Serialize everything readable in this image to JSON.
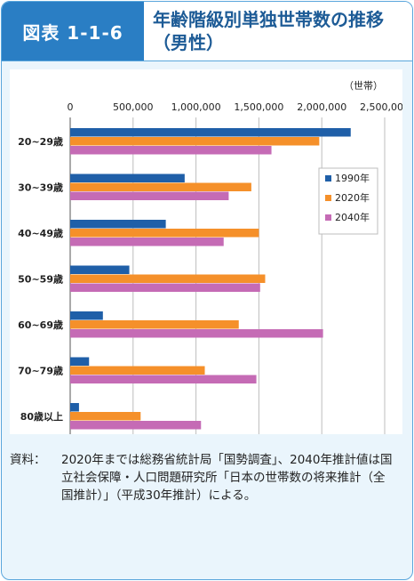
{
  "header": {
    "badge": "図表 1-1-6",
    "title_line1": "年齢階級別単独世帯数の推移",
    "title_line2": "（男性）"
  },
  "chart_data": {
    "type": "bar",
    "orientation": "horizontal",
    "unit": "（世帯）",
    "categories": [
      "20~29歳",
      "30~39歳",
      "40~49歳",
      "50~59歳",
      "60~69歳",
      "70~79歳",
      "80歳以上"
    ],
    "series": [
      {
        "name": "1990年",
        "color": "#1f5fa8",
        "values": [
          2230000,
          910000,
          760000,
          470000,
          260000,
          150000,
          70000
        ]
      },
      {
        "name": "2020年",
        "color": "#f5902a",
        "values": [
          1980000,
          1440000,
          1500000,
          1550000,
          1340000,
          1070000,
          560000
        ]
      },
      {
        "name": "2040年",
        "color": "#c56bb5",
        "values": [
          1600000,
          1260000,
          1220000,
          1510000,
          2010000,
          1480000,
          1040000
        ]
      }
    ],
    "xlim": [
      0,
      2500000
    ],
    "ticks": [
      0,
      500000,
      1000000,
      1500000,
      2000000,
      2500000
    ],
    "tick_labels": [
      "0",
      "500,000",
      "1,000,000",
      "1,500,000",
      "2,000,000",
      "2,500,000"
    ],
    "grid": true,
    "legend_position": "right"
  },
  "note": {
    "label": "資料：",
    "text": "2020年までは総務省統計局「国勢調査」、2040年推計値は国立社会保障・人口問題研究所「日本の世帯数の将来推計（全国推計）」（平成30年推計）による。"
  }
}
